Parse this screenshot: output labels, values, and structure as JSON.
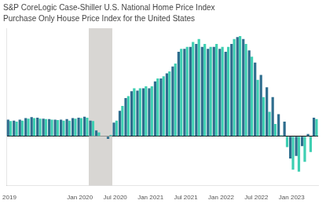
{
  "chart_data": {
    "type": "bar",
    "title": "S&P CoreLogic Case-Shiller U.S. National Home Price Index",
    "subtitle": "Purchase Only House Price Index for the United States",
    "categories": [
      "2019",
      null,
      null,
      null,
      null,
      null,
      null,
      null,
      null,
      null,
      null,
      null,
      "Jan 2020",
      null,
      null,
      null,
      null,
      null,
      "Jul 2020",
      null,
      null,
      null,
      null,
      null,
      "Jan 2021",
      null,
      null,
      null,
      null,
      null,
      "Jul 2021",
      null,
      null,
      null,
      null,
      null,
      "Jan 2022",
      null,
      null,
      null,
      null,
      null,
      "Jul 2022",
      null,
      null,
      null,
      null,
      null,
      "Jan 2023",
      null,
      null,
      null,
      null
    ],
    "series": [
      {
        "color": "#2e6d8e",
        "values": [
          3.4,
          3.2,
          3.4,
          3.7,
          3.9,
          3.8,
          3.6,
          3.5,
          3.4,
          3.4,
          3.5,
          3.7,
          3.8,
          4.0,
          3.2,
          1.2,
          0.1,
          -0.5,
          2.8,
          5.2,
          7.8,
          9.2,
          9.3,
          9.8,
          9.8,
          11.2,
          11.8,
          12.8,
          14.2,
          17.2,
          17.8,
          18.2,
          18.8,
          18.2,
          17.8,
          18.2,
          17.8,
          17.2,
          18.8,
          20.2,
          19.8,
          17.5,
          15.0,
          12.5,
          10.0,
          8.0,
          4.5,
          3.0,
          -4.5,
          -4.0,
          -2.0,
          0.5,
          3.8
        ]
      },
      {
        "color": "#3ecfb2",
        "values": [
          3.1,
          3.0,
          3.2,
          3.6,
          3.7,
          3.6,
          3.5,
          3.4,
          3.3,
          3.2,
          3.2,
          3.6,
          3.7,
          3.8,
          3.1,
          0.8,
          0.1,
          0.3,
          3.2,
          6.2,
          8.2,
          9.8,
          9.8,
          10.2,
          10.2,
          11.8,
          12.2,
          13.2,
          14.8,
          17.8,
          18.2,
          19.2,
          19.8,
          18.8,
          18.2,
          18.8,
          18.2,
          18.2,
          19.8,
          20.4,
          18.8,
          16.2,
          11.5,
          8.0,
          5.0,
          2.5,
          0.2,
          -2.2,
          -6.8,
          -7.2,
          -5.2,
          -3.2,
          3.5
        ]
      }
    ],
    "shaded": {
      "from": 14,
      "to": 17,
      "color": "#c8c4c0"
    },
    "ylim": [
      -10,
      22
    ],
    "yticks": [
      0
    ],
    "grid": true,
    "tick_labels": "x"
  }
}
